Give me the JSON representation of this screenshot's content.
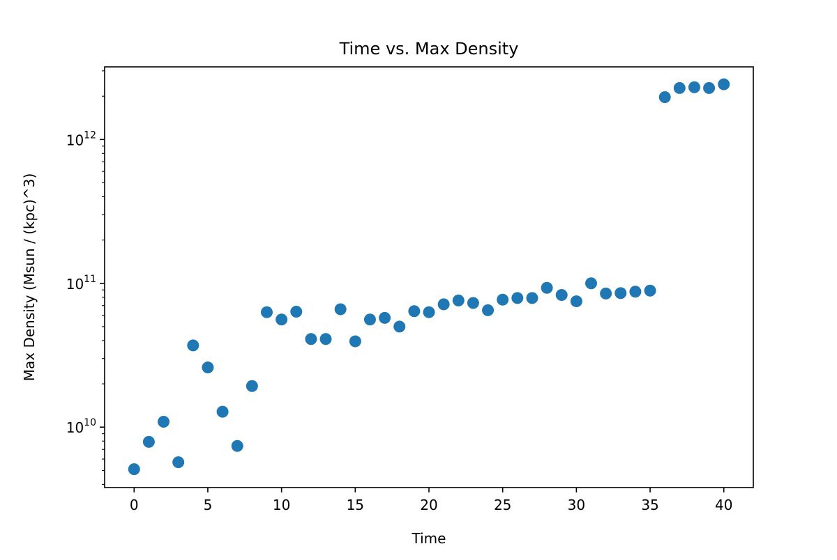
{
  "chart_data": {
    "type": "scatter",
    "title": "Time vs. Max Density",
    "xlabel": "Time",
    "ylabel": "Max Density (Msun / (kpc)^3)",
    "xlim": [
      -2,
      42
    ],
    "ylim": [
      3800000000.0,
      3200000000000.0
    ],
    "y_scale": "log",
    "grid": false,
    "marker_color": "#1f77b4",
    "x_ticks": [
      {
        "value": 0,
        "label": "0"
      },
      {
        "value": 5,
        "label": "5"
      },
      {
        "value": 10,
        "label": "10"
      },
      {
        "value": 15,
        "label": "15"
      },
      {
        "value": 20,
        "label": "20"
      },
      {
        "value": 25,
        "label": "25"
      },
      {
        "value": 30,
        "label": "30"
      },
      {
        "value": 35,
        "label": "35"
      },
      {
        "value": 40,
        "label": "40"
      }
    ],
    "y_ticks": [
      {
        "value": 10000000000.0,
        "base": "10",
        "exp": "10"
      },
      {
        "value": 100000000000.0,
        "base": "10",
        "exp": "11"
      },
      {
        "value": 1000000000000.0,
        "base": "10",
        "exp": "12"
      }
    ],
    "series": [
      {
        "x": [
          0,
          1,
          2,
          3,
          4,
          5,
          6,
          7,
          8,
          9,
          10,
          11,
          12,
          13,
          14,
          15,
          16,
          17,
          18,
          19,
          20,
          21,
          22,
          23,
          24,
          25,
          26,
          27,
          28,
          29,
          30,
          31,
          32,
          33,
          34,
          35,
          36,
          37,
          38,
          39,
          40
        ],
        "y": [
          5100000000.0,
          7900000000.0,
          10900000000.0,
          5700000000.0,
          37000000000.0,
          26000000000.0,
          12800000000.0,
          7400000000.0,
          19300000000.0,
          63000000000.0,
          56000000000.0,
          63500000000.0,
          41000000000.0,
          41000000000.0,
          66000000000.0,
          39500000000.0,
          56000000000.0,
          57500000000.0,
          50000000000.0,
          64000000000.0,
          63000000000.0,
          71500000000.0,
          76000000000.0,
          73000000000.0,
          65000000000.0,
          77000000000.0,
          79000000000.0,
          79000000000.0,
          93000000000.0,
          83000000000.0,
          75000000000.0,
          100000000000.0,
          85000000000.0,
          85500000000.0,
          87500000000.0,
          89000000000.0,
          1970000000000.0,
          2280000000000.0,
          2310000000000.0,
          2280000000000.0,
          2420000000000.0
        ]
      }
    ]
  }
}
